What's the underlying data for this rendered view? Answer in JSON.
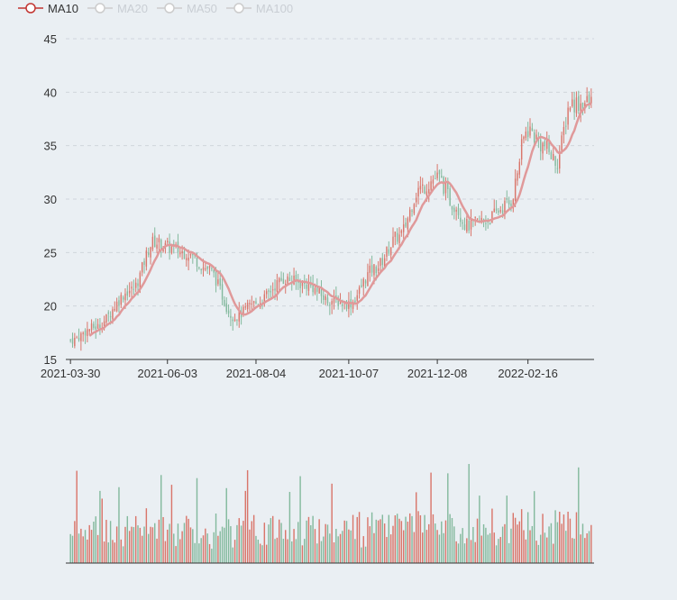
{
  "legend": [
    {
      "label": "MA10",
      "active": true
    },
    {
      "label": "MA20",
      "active": false
    },
    {
      "label": "MA50",
      "active": false
    },
    {
      "label": "MA100",
      "active": false
    }
  ],
  "colors": {
    "up": "#d9756a",
    "down": "#83b99d",
    "ma10": "#e0999a",
    "grid": "#d0d6dc",
    "axis": "#333333",
    "legend_active": "#c23531",
    "legend_inactive": "#cccccc"
  },
  "chart_data": {
    "type": "candlestick",
    "x_tick_labels": [
      "2021-03-30",
      "2021-06-03",
      "2021-08-04",
      "2021-10-07",
      "2021-12-08",
      "2022-02-16"
    ],
    "y_ticks": [
      15,
      20,
      25,
      30,
      35,
      40,
      45
    ],
    "ylim": [
      15,
      45
    ],
    "grid": true,
    "legend_position": "top-left",
    "trading_days": 248,
    "ma10_visible": true,
    "price_path_anchors": [
      {
        "date": "2021-03-30",
        "price": 16.8
      },
      {
        "date": "2021-04-15",
        "price": 18.0
      },
      {
        "date": "2021-05-10",
        "price": 21.5
      },
      {
        "date": "2021-05-25",
        "price": 26.0
      },
      {
        "date": "2021-06-03",
        "price": 25.5
      },
      {
        "date": "2021-06-16",
        "price": 25.0
      },
      {
        "date": "2021-07-01",
        "price": 23.5
      },
      {
        "date": "2021-07-20",
        "price": 19.0
      },
      {
        "date": "2021-08-04",
        "price": 20.3
      },
      {
        "date": "2021-08-24",
        "price": 22.5
      },
      {
        "date": "2021-09-08",
        "price": 22.0
      },
      {
        "date": "2021-09-24",
        "price": 20.5
      },
      {
        "date": "2021-10-07",
        "price": 20.2
      },
      {
        "date": "2021-10-25",
        "price": 23.5
      },
      {
        "date": "2021-11-11",
        "price": 26.5
      },
      {
        "date": "2021-11-26",
        "price": 31.0
      },
      {
        "date": "2021-12-08",
        "price": 32.0
      },
      {
        "date": "2021-12-21",
        "price": 29.5
      },
      {
        "date": "2021-12-31",
        "price": 27.5
      },
      {
        "date": "2022-01-14",
        "price": 28.0
      },
      {
        "date": "2022-02-01",
        "price": 29.5
      },
      {
        "date": "2022-02-16",
        "price": 36.5
      },
      {
        "date": "2022-02-28",
        "price": 35.0
      },
      {
        "date": "2022-03-10",
        "price": 33.5
      },
      {
        "date": "2022-03-21",
        "price": 39.0
      }
    ]
  }
}
